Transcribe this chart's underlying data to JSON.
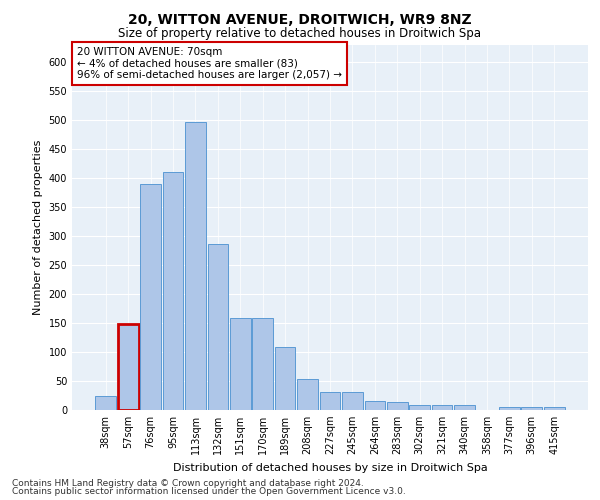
{
  "title1": "20, WITTON AVENUE, DROITWICH, WR9 8NZ",
  "title2": "Size of property relative to detached houses in Droitwich Spa",
  "xlabel": "Distribution of detached houses by size in Droitwich Spa",
  "ylabel": "Number of detached properties",
  "bar_labels": [
    "38sqm",
    "57sqm",
    "76sqm",
    "95sqm",
    "113sqm",
    "132sqm",
    "151sqm",
    "170sqm",
    "189sqm",
    "208sqm",
    "227sqm",
    "245sqm",
    "264sqm",
    "283sqm",
    "302sqm",
    "321sqm",
    "340sqm",
    "358sqm",
    "377sqm",
    "396sqm",
    "415sqm"
  ],
  "bar_values": [
    25,
    148,
    390,
    410,
    497,
    287,
    158,
    158,
    108,
    53,
    31,
    31,
    16,
    13,
    9,
    9,
    9,
    0,
    6,
    5,
    6
  ],
  "bar_color": "#aec6e8",
  "bar_edge_color": "#5b9bd5",
  "highlight_bar_index": 1,
  "highlight_color": "#cc0000",
  "annotation_text": "20 WITTON AVENUE: 70sqm\n← 4% of detached houses are smaller (83)\n96% of semi-detached houses are larger (2,057) →",
  "annotation_box_color": "#cc0000",
  "ylim": [
    0,
    630
  ],
  "yticks": [
    0,
    50,
    100,
    150,
    200,
    250,
    300,
    350,
    400,
    450,
    500,
    550,
    600
  ],
  "plot_bg_color": "#e8f0f8",
  "footnote1": "Contains HM Land Registry data © Crown copyright and database right 2024.",
  "footnote2": "Contains public sector information licensed under the Open Government Licence v3.0.",
  "title1_fontsize": 10,
  "title2_fontsize": 8.5,
  "xlabel_fontsize": 8,
  "ylabel_fontsize": 8,
  "tick_fontsize": 7,
  "annotation_fontsize": 7.5,
  "footnote_fontsize": 6.5
}
